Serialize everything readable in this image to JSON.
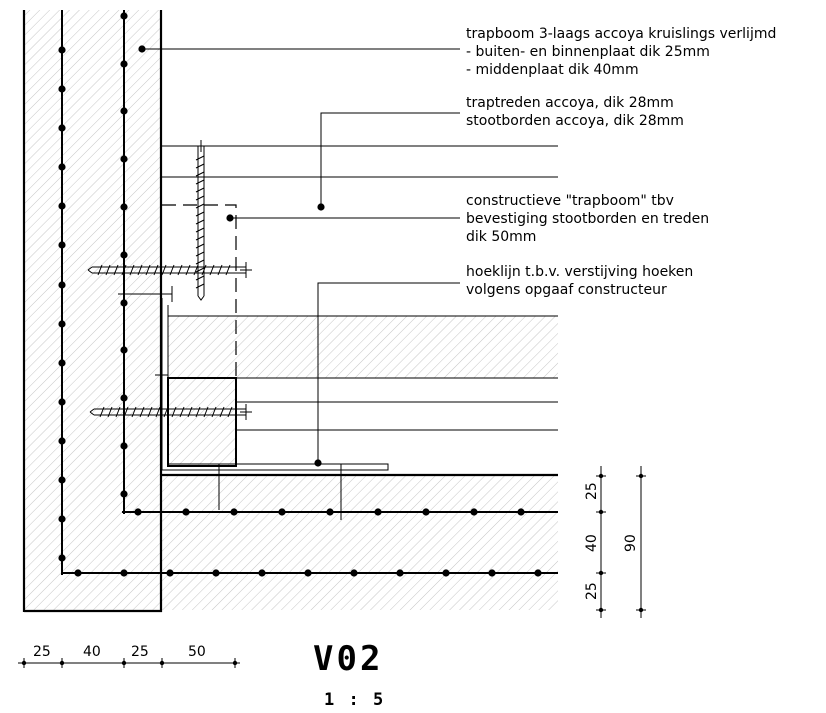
{
  "notes": [
    {
      "lines": [
        "trapboom 3-laags accoya kruislings verlijmd",
        "- buiten- en binnenplaat dik 25mm",
        "- middenplaat dik 40mm"
      ]
    },
    {
      "lines": [
        "traptreden accoya, dik 28mm",
        "stootborden accoya, dik 28mm"
      ]
    },
    {
      "lines": [
        "constructieve \"trapboom\" tbv",
        "bevestiging stootborden en treden",
        "dik 50mm"
      ]
    },
    {
      "lines": [
        "hoeklijn t.b.v. verstijving hoeken",
        "volgens opgaaf constructeur"
      ]
    }
  ],
  "dimensions": {
    "horizontal": [
      "25",
      "40",
      "25",
      "50"
    ],
    "vertical": [
      "25",
      "40",
      "25"
    ],
    "total": "90"
  },
  "title": "V02",
  "scale": "1 : 5"
}
